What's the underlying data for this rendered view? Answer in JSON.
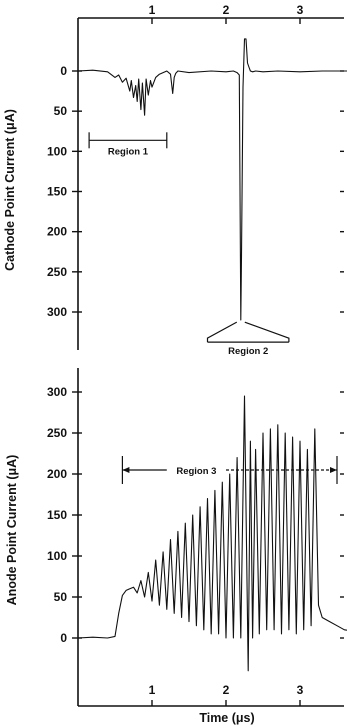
{
  "chart_data": [
    {
      "type": "line",
      "panel": "top",
      "ylabel": "Cathode Point Current (μA)",
      "xlim": [
        0,
        3.75
      ],
      "ylim_inverted": [
        -40,
        350
      ],
      "x_ticks": [
        "1",
        "2",
        "3"
      ],
      "x_tick_values": [
        1,
        2,
        3
      ],
      "y_ticks": [
        "0",
        "50",
        "100",
        "150",
        "200",
        "250",
        "300"
      ],
      "y_tick_values": [
        0,
        50,
        100,
        150,
        200,
        250,
        300
      ],
      "annotations": [
        {
          "text": "Region 1",
          "x_range": [
            0.15,
            1.2
          ],
          "y": 90
        },
        {
          "text": "Region 2",
          "x_range": [
            1.75,
            2.85
          ],
          "y": 340
        }
      ],
      "series": [
        {
          "x": [
            0.0,
            0.2,
            0.4,
            0.5,
            0.55,
            0.6,
            0.65,
            0.7,
            0.72,
            0.75,
            0.78,
            0.8,
            0.82,
            0.85,
            0.87,
            0.9,
            0.92,
            0.95,
            0.98,
            1.0,
            1.05,
            1.1,
            1.15,
            1.2,
            1.25,
            1.28,
            1.3,
            1.32,
            1.35,
            1.5,
            1.8,
            2.0,
            2.1,
            2.15,
            2.18,
            2.2,
            2.21,
            2.23,
            2.25,
            2.27,
            2.29,
            2.31,
            2.33,
            2.36,
            2.4,
            2.5,
            2.7,
            3.0,
            3.3,
            3.75
          ],
          "y": [
            0,
            -1,
            1,
            8,
            5,
            14,
            9,
            25,
            12,
            33,
            18,
            38,
            10,
            48,
            15,
            55,
            10,
            30,
            12,
            20,
            8,
            4,
            2,
            0,
            4,
            28,
            8,
            3,
            0,
            2,
            0,
            1,
            0,
            2,
            5,
            310,
            230,
            20,
            -40,
            -40,
            -10,
            -5,
            0,
            1,
            0,
            1,
            0,
            1,
            0,
            0
          ]
        }
      ]
    },
    {
      "type": "line",
      "panel": "bottom",
      "ylabel": "Anode Point Current (μA)",
      "xlabel": "Time (μs)",
      "xlim": [
        0,
        3.75
      ],
      "ylim": [
        -40,
        330
      ],
      "x_ticks": [
        "1",
        "2",
        "3"
      ],
      "x_tick_values": [
        1,
        2,
        3
      ],
      "y_ticks": [
        "0",
        "50",
        "100",
        "150",
        "200",
        "250",
        "300"
      ],
      "y_tick_values": [
        0,
        50,
        100,
        150,
        200,
        250,
        300
      ],
      "annotations": [
        {
          "text": "Region 3",
          "x_range": [
            0.6,
            3.5
          ],
          "y": 200
        }
      ],
      "series": [
        {
          "x": [
            0.0,
            0.2,
            0.4,
            0.5,
            0.55,
            0.6,
            0.65,
            0.7,
            0.75,
            0.8,
            0.85,
            0.9,
            0.95,
            1.0,
            1.05,
            1.1,
            1.15,
            1.2,
            1.25,
            1.3,
            1.35,
            1.4,
            1.45,
            1.5,
            1.55,
            1.6,
            1.65,
            1.7,
            1.75,
            1.8,
            1.85,
            1.9,
            1.95,
            2.0,
            2.05,
            2.1,
            2.15,
            2.2,
            2.25,
            2.3,
            2.33,
            2.36,
            2.4,
            2.45,
            2.5,
            2.55,
            2.6,
            2.65,
            2.7,
            2.75,
            2.8,
            2.85,
            2.9,
            2.95,
            3.0,
            3.05,
            3.1,
            3.15,
            3.2,
            3.25,
            3.3,
            3.4,
            3.5,
            3.6,
            3.75
          ],
          "y": [
            0,
            1,
            0,
            2,
            30,
            52,
            58,
            60,
            62,
            55,
            70,
            50,
            80,
            45,
            95,
            40,
            105,
            35,
            120,
            30,
            130,
            25,
            140,
            20,
            150,
            15,
            160,
            10,
            170,
            5,
            180,
            5,
            190,
            0,
            200,
            0,
            220,
            0,
            295,
            -40,
            240,
            0,
            230,
            5,
            250,
            10,
            255,
            10,
            260,
            5,
            250,
            10,
            245,
            5,
            240,
            10,
            230,
            15,
            255,
            40,
            25,
            20,
            15,
            10,
            8
          ]
        }
      ]
    }
  ]
}
